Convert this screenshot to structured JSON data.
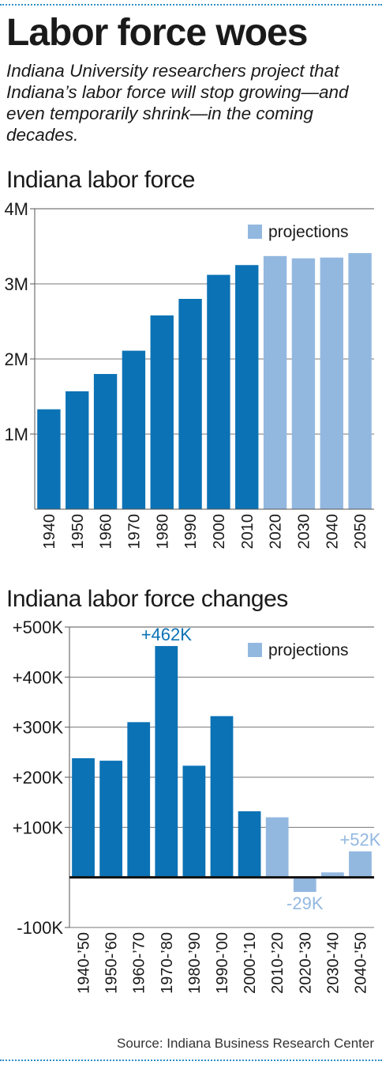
{
  "headline": "Labor force woes",
  "dek": "Indiana University researchers project that Indiana’s labor force will stop growing—and even temporarily shrink—in the coming decades.",
  "source": "Source: Indiana Business Research Center",
  "colors": {
    "actual": "#0b72b5",
    "projection": "#93b8e0",
    "rule": "#2d8fc8"
  },
  "chart_data": [
    {
      "type": "bar",
      "title": "Indiana labor force",
      "categories": [
        "1940",
        "1950",
        "1960",
        "1970",
        "1980",
        "1990",
        "2000",
        "2010",
        "2020",
        "2030",
        "2040",
        "2050"
      ],
      "values": [
        1330000,
        1570000,
        1800000,
        2110000,
        2580000,
        2800000,
        3120000,
        3250000,
        3370000,
        3340000,
        3350000,
        3410000
      ],
      "projection_from_index": 8,
      "ylim": [
        0,
        4000000
      ],
      "yticks": [
        1000000,
        2000000,
        3000000,
        4000000
      ],
      "ytick_labels": [
        "1M",
        "2M",
        "3M",
        "4M"
      ],
      "legend": {
        "label": "projections",
        "placement": "top-right"
      },
      "grid": true,
      "xlabel": "",
      "ylabel": ""
    },
    {
      "type": "bar",
      "title": "Indiana labor force changes",
      "categories": [
        "1940-’50",
        "1950-’60",
        "1960-’70",
        "1970-’80",
        "1980-’90",
        "1990-’00",
        "2000-’10",
        "2010-’20",
        "2020-’30",
        "2030-’40",
        "2040-’50"
      ],
      "values": [
        238000,
        233000,
        310000,
        462000,
        223000,
        322000,
        132000,
        120000,
        -29000,
        10000,
        52000
      ],
      "projection_from_index": 7,
      "ylim": [
        -100000,
        500000
      ],
      "yticks": [
        -100000,
        100000,
        200000,
        300000,
        400000,
        500000
      ],
      "ytick_labels": [
        "-100K",
        "+100K",
        "+200K",
        "+300K",
        "+400K",
        "+500K"
      ],
      "data_labels": [
        {
          "index": 3,
          "text": "+462K"
        },
        {
          "index": 8,
          "text": "-29K"
        },
        {
          "index": 10,
          "text": "+52K"
        }
      ],
      "legend": {
        "label": "projections",
        "placement": "top-right"
      },
      "grid": true,
      "xlabel": "",
      "ylabel": ""
    }
  ]
}
